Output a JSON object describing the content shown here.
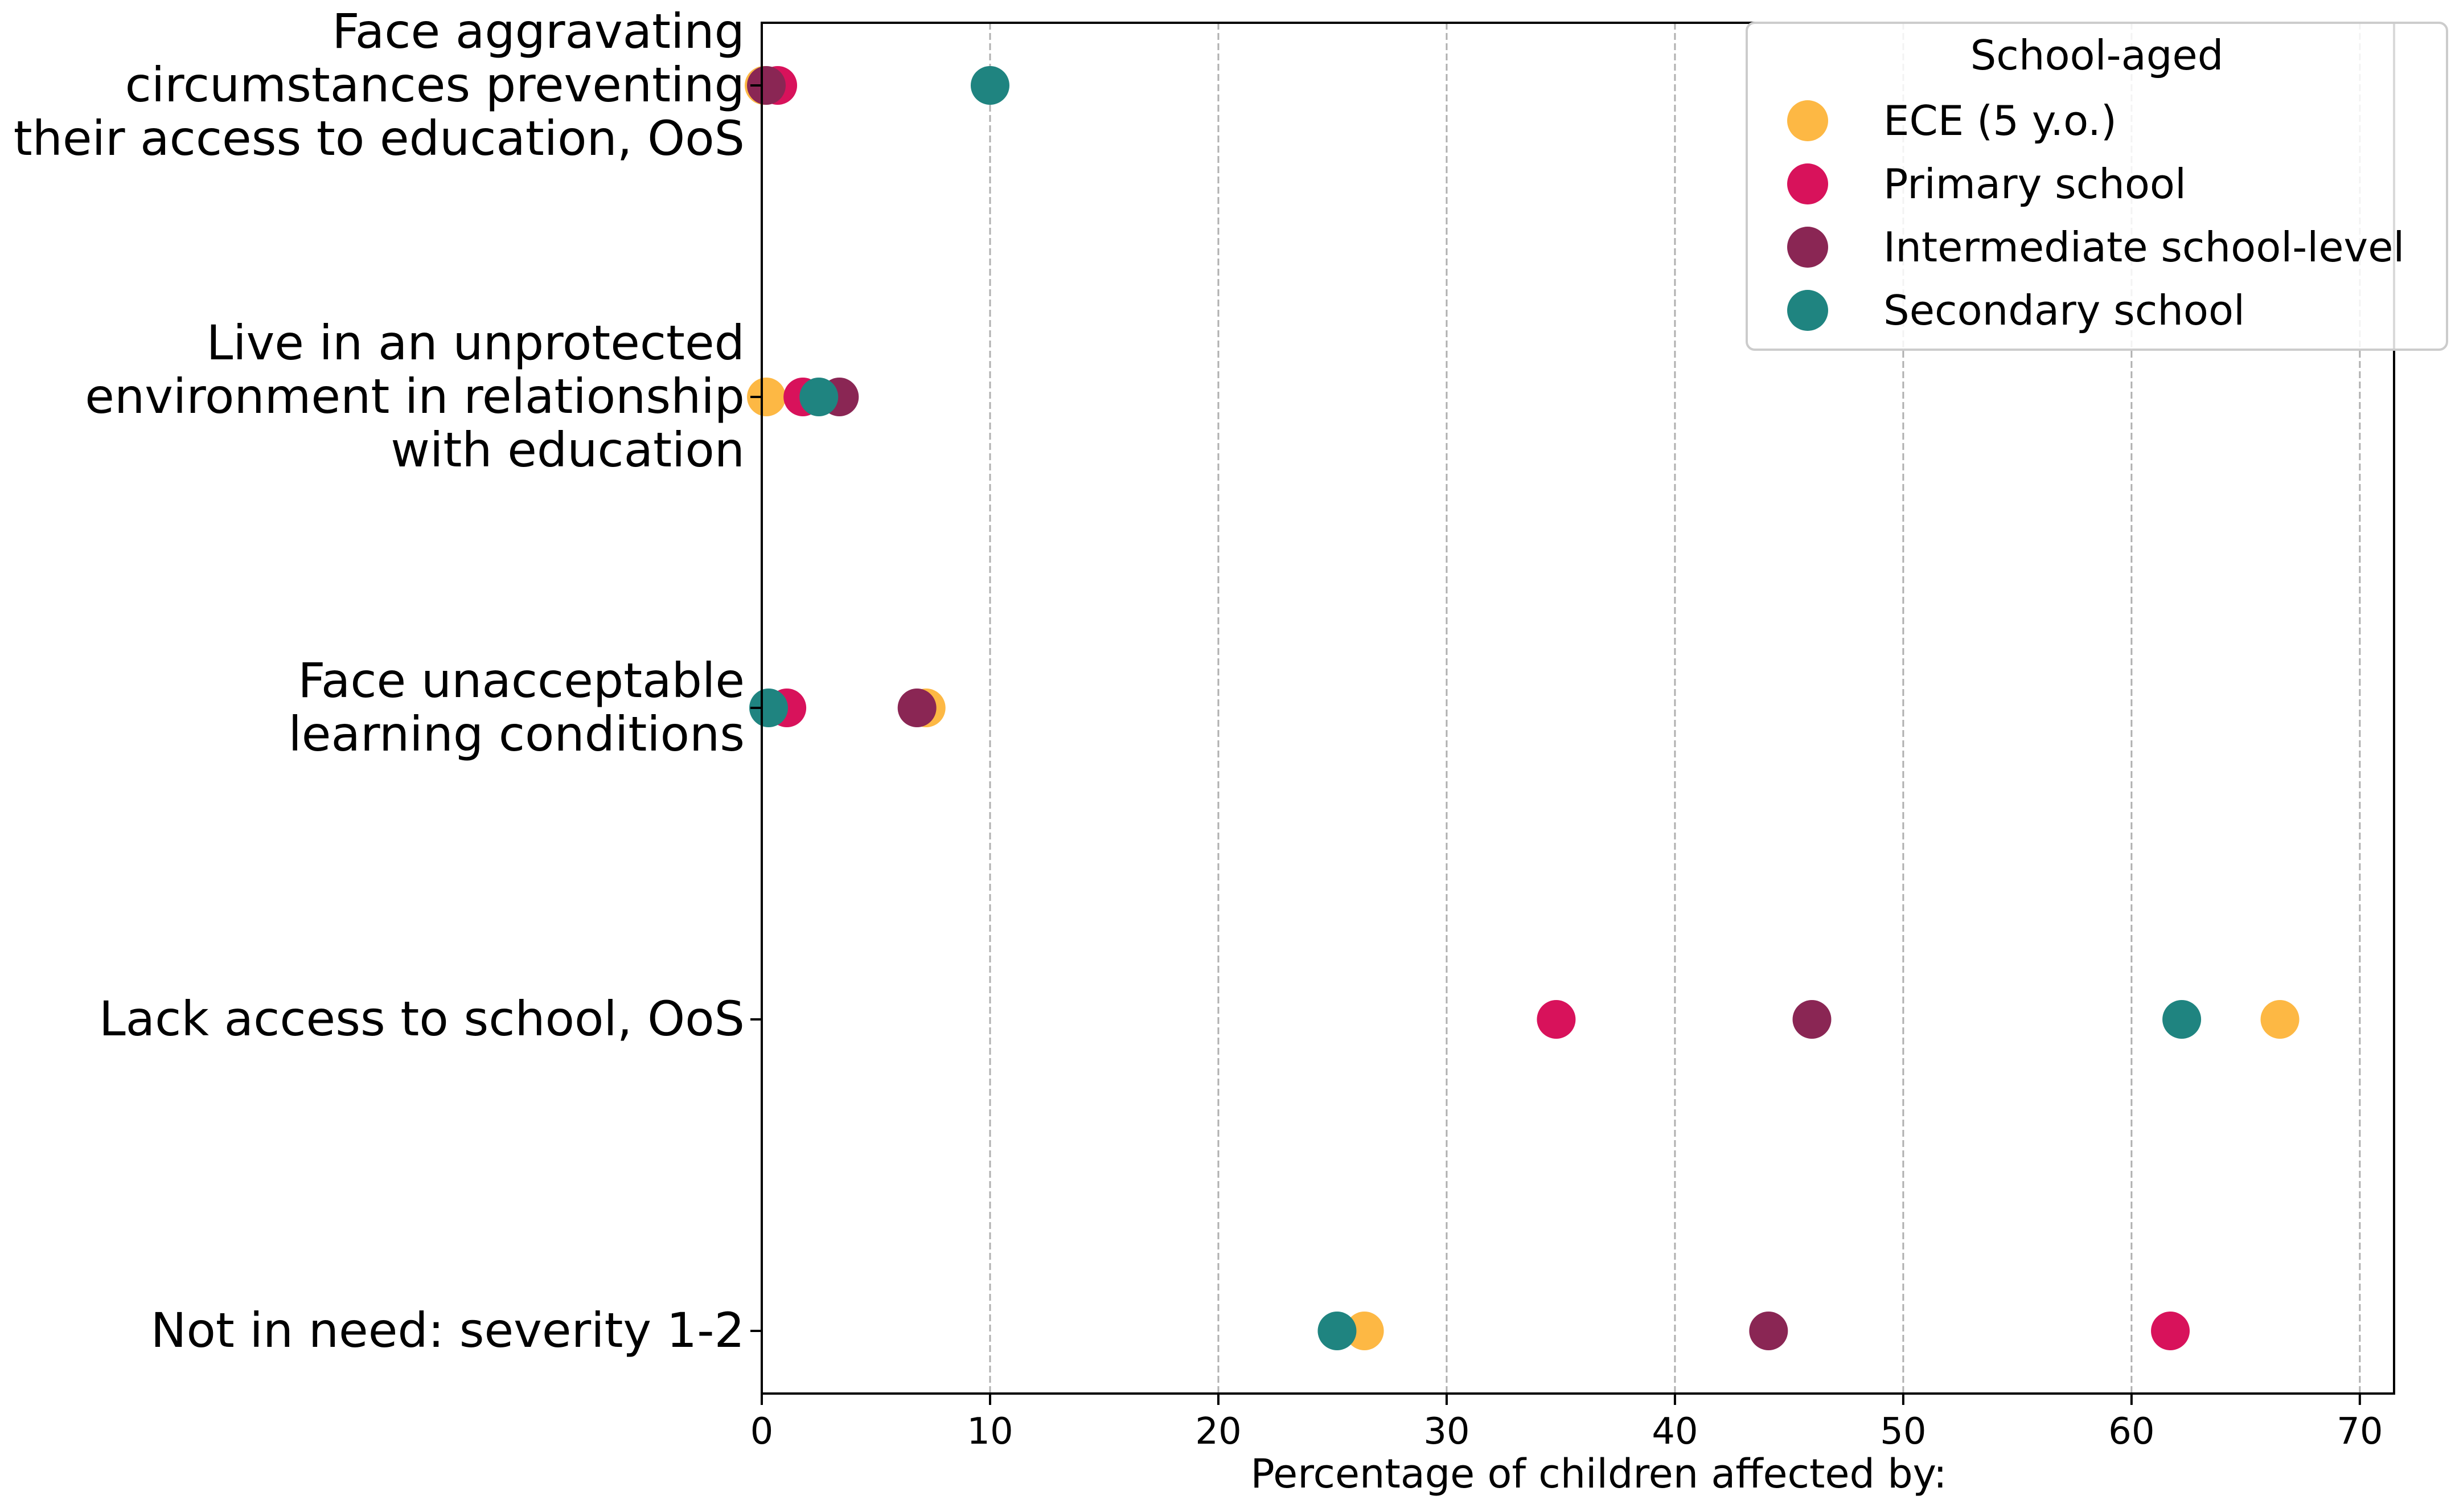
{
  "chart_data": {
    "type": "scatter",
    "xlabel": "Percentage of children affected by:",
    "ylabel": "",
    "xlim": [
      0,
      71.5
    ],
    "xticks": [
      "0",
      "10",
      "20",
      "30",
      "40",
      "50",
      "60",
      "70"
    ],
    "grid": "vertical dashed",
    "categories": [
      [
        "Face aggravating",
        "circumstances preventing",
        "their access to education, OoS"
      ],
      [
        "Live in an unprotected",
        "environment in relationship",
        "with education"
      ],
      [
        "Face unacceptable",
        "learning conditions"
      ],
      [
        "Lack access to school, OoS"
      ],
      [
        "Not in need: severity 1-2"
      ]
    ],
    "legend": {
      "title": "School-aged",
      "placement": "top-right"
    },
    "series": [
      {
        "name": "ECE (5 y.o.)",
        "color": "#FDB844",
        "values": [
          0.1,
          0.2,
          7.2,
          66.5,
          26.4
        ]
      },
      {
        "name": "Primary school",
        "color": "#D8125B",
        "values": [
          0.7,
          1.8,
          1.1,
          34.8,
          61.7
        ]
      },
      {
        "name": "Intermediate school-level",
        "color": "#8A2654",
        "values": [
          0.2,
          3.4,
          6.8,
          46.0,
          44.1
        ]
      },
      {
        "name": "Secondary school",
        "color": "#1F8480",
        "values": [
          10.0,
          2.5,
          0.3,
          62.2,
          25.2
        ]
      }
    ]
  }
}
